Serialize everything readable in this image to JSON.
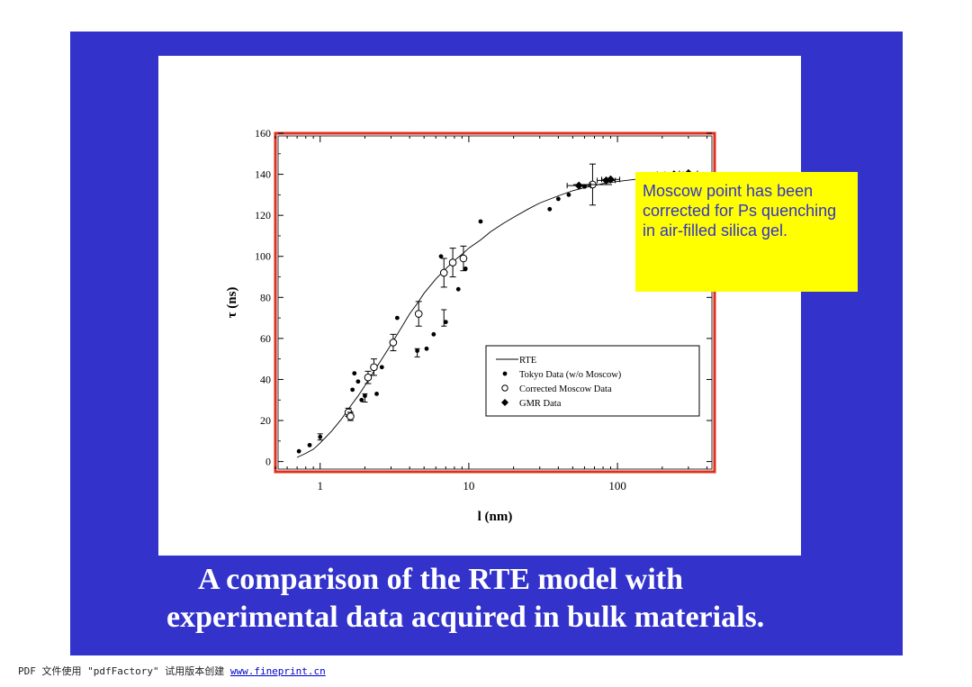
{
  "colors": {
    "slide_bg": "#3333cc",
    "callout_bg": "#ffff00",
    "frame": "#e0301e"
  },
  "callout_text": "Moscow point has been corrected for Ps quenching in air-filled silica gel.",
  "caption": {
    "line1": "A comparison of the RTE model with",
    "line2": "experimental data acquired in bulk materials."
  },
  "footer": {
    "text": "PDF 文件使用 \"pdfFactory\" 试用版本创建 ",
    "link": "www.fineprint.cn"
  },
  "chart_data": {
    "type": "scatter",
    "xscale": "log",
    "xlim": [
      0.5,
      450
    ],
    "ylim": [
      -5,
      160
    ],
    "xlabel": "l (nm)",
    "ylabel": "τ (ns)",
    "xticks": [
      1,
      10,
      100
    ],
    "yticks": [
      0,
      20,
      40,
      60,
      80,
      100,
      120,
      140,
      160
    ],
    "grid": false,
    "legend_position": "lower-right",
    "legend": [
      "RTE",
      "Tokyo Data (w/o Moscow)",
      "Corrected Moscow Data",
      "GMR Data"
    ],
    "series": [
      {
        "name": "RTE",
        "type": "line",
        "x": [
          0.7,
          0.8,
          0.9,
          1.0,
          1.2,
          1.4,
          1.6,
          1.8,
          2.0,
          2.3,
          2.6,
          3.0,
          3.5,
          4.0,
          4.5,
          5.0,
          6.0,
          7.0,
          8.0,
          9.0,
          10,
          12,
          14,
          17,
          20,
          25,
          30,
          40,
          50,
          60,
          70,
          80,
          100,
          130,
          160,
          200,
          250,
          300
        ],
        "y": [
          2,
          4,
          6,
          9,
          15,
          21,
          27,
          32,
          37,
          44,
          50,
          57,
          65,
          72,
          77,
          82,
          89,
          94,
          98,
          101,
          104,
          108,
          112,
          116,
          119,
          123,
          126,
          129.5,
          132,
          133.5,
          134.5,
          135.5,
          136.5,
          137.5,
          138,
          138.7,
          139.2,
          139.6
        ]
      },
      {
        "name": "Tokyo Data (w/o Moscow)",
        "type": "scatter",
        "x": [
          0.72,
          0.85,
          1.0,
          1.55,
          1.65,
          1.7,
          1.8,
          1.9,
          2.0,
          2.4,
          2.6,
          3.3,
          4.5,
          5.2,
          5.8,
          6.5,
          7.0,
          8.5,
          9.5,
          12,
          35,
          40,
          47,
          60
        ],
        "y": [
          5,
          8,
          12,
          22,
          35,
          43,
          39,
          30,
          32,
          33,
          46,
          70,
          54,
          55,
          62,
          100,
          68,
          84,
          94,
          117,
          123,
          128,
          130,
          134
        ],
        "errorbars": [
          {
            "x": 1.0,
            "y": 12,
            "err": 1.5
          },
          {
            "x": 2.0,
            "y": 31,
            "err": 2
          },
          {
            "x": 4.5,
            "y": 53,
            "err": 2
          },
          {
            "x": 6.8,
            "y": 70,
            "err": 4
          }
        ]
      },
      {
        "name": "Corrected Moscow Data",
        "type": "scatter",
        "x": [
          1.55,
          1.6,
          2.1,
          2.3,
          3.1,
          4.6,
          6.8,
          7.8,
          9.2,
          68
        ],
        "y": [
          24,
          22,
          41,
          46,
          58,
          72,
          92,
          97,
          99,
          135
        ],
        "yerr": [
          2,
          2,
          3,
          4,
          4,
          6,
          7,
          7,
          6,
          10
        ]
      },
      {
        "name": "GMR Data",
        "type": "scatter",
        "x": [
          55,
          84,
          90,
          185,
          240,
          300
        ],
        "y": [
          134.5,
          137,
          137.5,
          139.5,
          140,
          140.5
        ],
        "xerr_factor": [
          1.2,
          1.15,
          1.15,
          1.15,
          1.15,
          1.15
        ]
      }
    ]
  }
}
